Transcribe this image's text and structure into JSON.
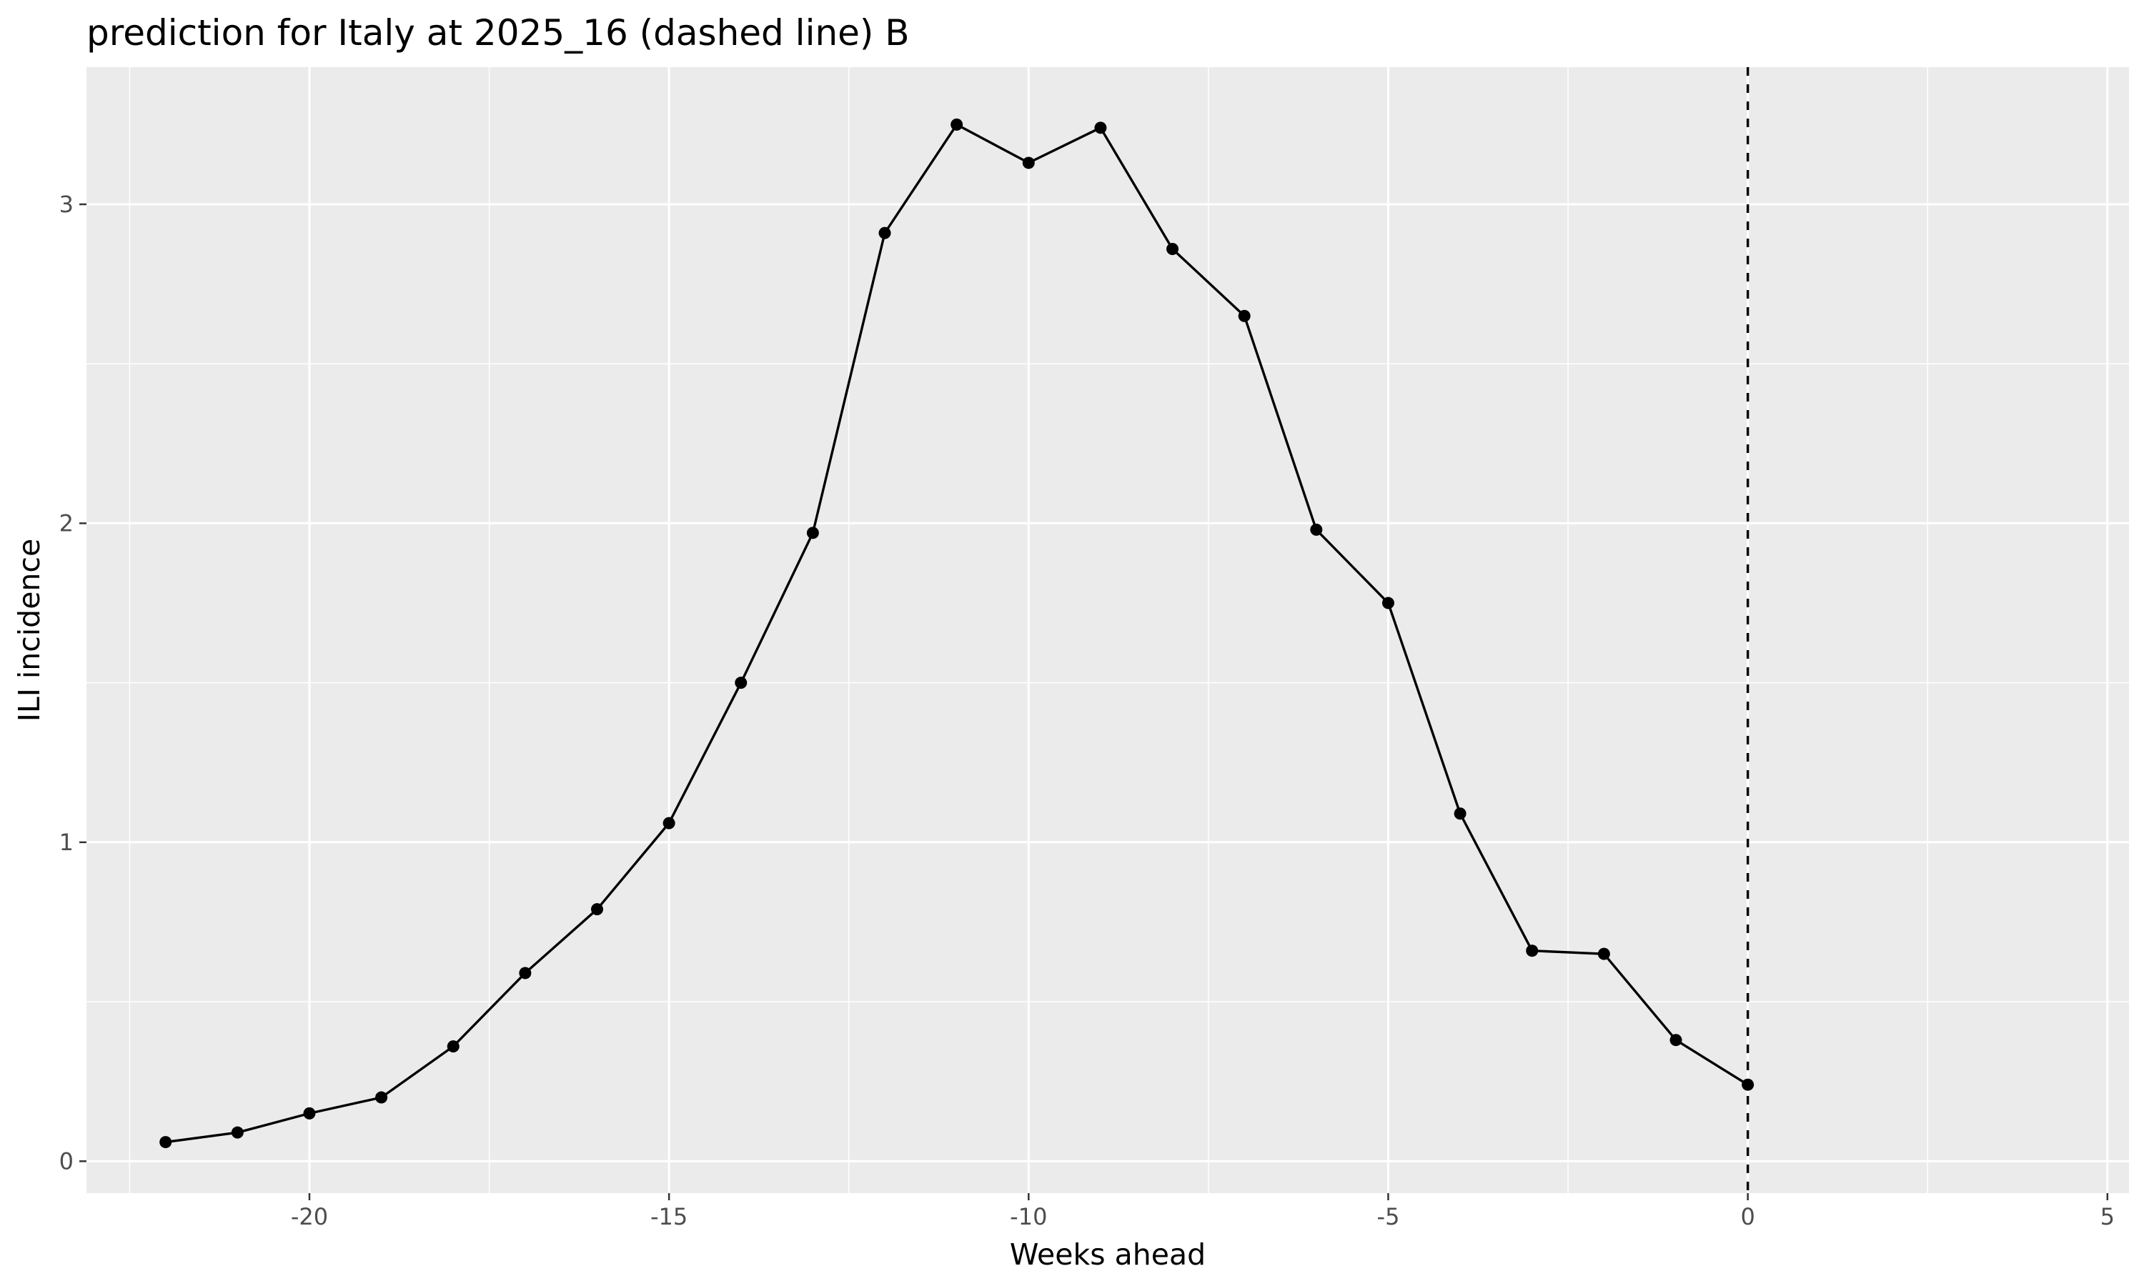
{
  "chart_data": {
    "type": "line",
    "title": "prediction for Italy at 2025_16 (dashed line) B",
    "xlabel": "Weeks ahead",
    "ylabel": "ILI incidence",
    "xlim": [
      -23.1,
      5.3
    ],
    "ylim": [
      -0.1,
      3.43
    ],
    "x_ticks": [
      -20,
      -15,
      -10,
      -5,
      0,
      5
    ],
    "y_ticks": [
      0,
      1,
      2,
      3
    ],
    "x_tick_labels": [
      "-20",
      "-15",
      "-10",
      "-5",
      "0",
      "5"
    ],
    "y_tick_labels": [
      "0",
      "1",
      "2",
      "3"
    ],
    "grid": true,
    "reference_line": {
      "x": 0,
      "style": "dashed"
    },
    "series": [
      {
        "x": [
          -22,
          -21,
          -20,
          -19,
          -18,
          -17,
          -16,
          -15,
          -14,
          -13,
          -12,
          -11,
          -10,
          -9,
          -8,
          -7,
          -6,
          -5,
          -4,
          -3,
          -2,
          -1,
          0
        ],
        "values": [
          0.06,
          0.09,
          0.15,
          0.2,
          0.36,
          0.59,
          0.79,
          1.06,
          1.5,
          1.97,
          2.91,
          3.25,
          3.13,
          3.24,
          2.86,
          2.65,
          1.98,
          1.75,
          1.09,
          0.66,
          0.65,
          0.38,
          0.24
        ]
      }
    ],
    "colors": {
      "panel": "#ebebeb",
      "grid": "#ffffff",
      "line": "#000000",
      "tick_text": "#4d4d4d",
      "tick_mark": "#333333"
    }
  }
}
